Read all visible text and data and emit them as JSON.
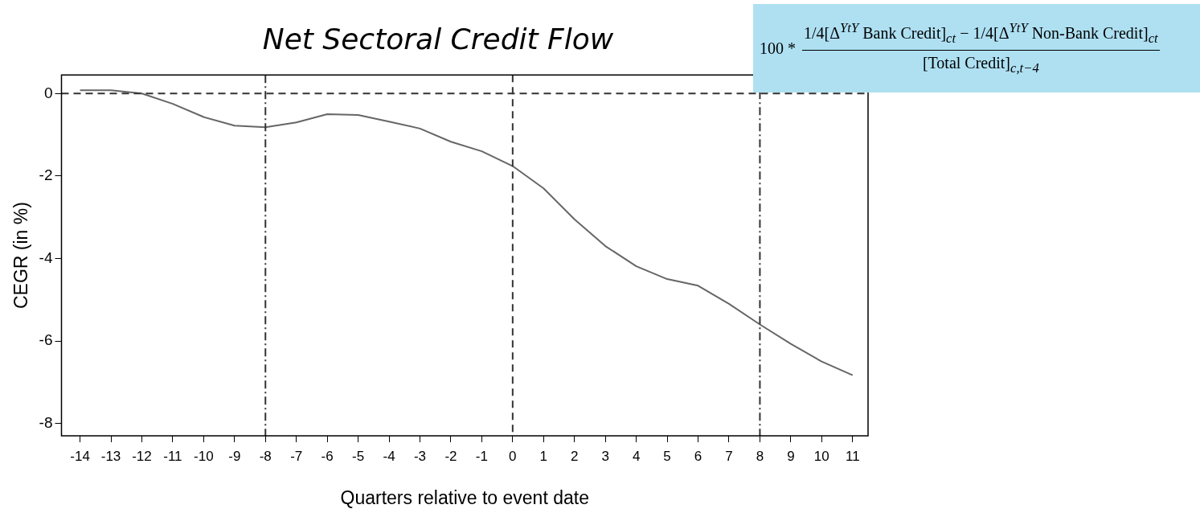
{
  "chart_data": {
    "type": "line",
    "title": "Net Sectoral Credit Flow",
    "xlabel": "Quarters relative to event date",
    "ylabel": "CEGR (in %)",
    "x": [
      -14,
      -13,
      -12,
      -11,
      -10,
      -9,
      -8,
      -7,
      -6,
      -5,
      -4,
      -3,
      -2,
      -1,
      0,
      1,
      2,
      3,
      4,
      5,
      6,
      7,
      8,
      9,
      10,
      11
    ],
    "series": [
      {
        "color": "#666666",
        "values": [
          0.08,
          0.08,
          0,
          -0.25,
          -0.57,
          -0.78,
          -0.82,
          -0.7,
          -0.5,
          -0.52,
          -0.68,
          -0.85,
          -1.17,
          -1.4,
          -1.76,
          -2.3,
          -3.05,
          -3.7,
          -4.19,
          -4.5,
          -4.66,
          -5.1,
          -5.6,
          -6.07,
          -6.5,
          -6.83
        ]
      }
    ],
    "xlim": [
      -14.6,
      11.5
    ],
    "ylim": [
      -8.3,
      0.45
    ],
    "xticks": [
      -14,
      -13,
      -12,
      -11,
      -10,
      -9,
      -8,
      -7,
      -6,
      -5,
      -4,
      -3,
      -2,
      -1,
      0,
      1,
      2,
      3,
      4,
      5,
      6,
      7,
      8,
      9,
      10,
      11
    ],
    "yticks": [
      0,
      -2,
      -4,
      -6,
      -8
    ],
    "ref_lines": [
      {
        "axis": "y",
        "value": 0,
        "line_style": "dashed",
        "color": "#333333"
      },
      {
        "axis": "x",
        "value": -8,
        "line_style": "dashdot",
        "color": "#333333"
      },
      {
        "axis": "x",
        "value": 0,
        "line_style": "dashed",
        "color": "#333333"
      },
      {
        "axis": "x",
        "value": 8,
        "line_style": "dashdot",
        "color": "#333333"
      }
    ],
    "annotations": [
      "100 *",
      "1/4[Δ$^{YtY}$ Bank Credit]$_{ct}$ − 1/4[Δ$^{YtY}$ Non-Bank Credit]$_{ct}$",
      "[Total Credit]$_{c,t−4}$"
    ],
    "grid": false,
    "legend": false,
    "marker": "none",
    "line_style": "solid"
  }
}
